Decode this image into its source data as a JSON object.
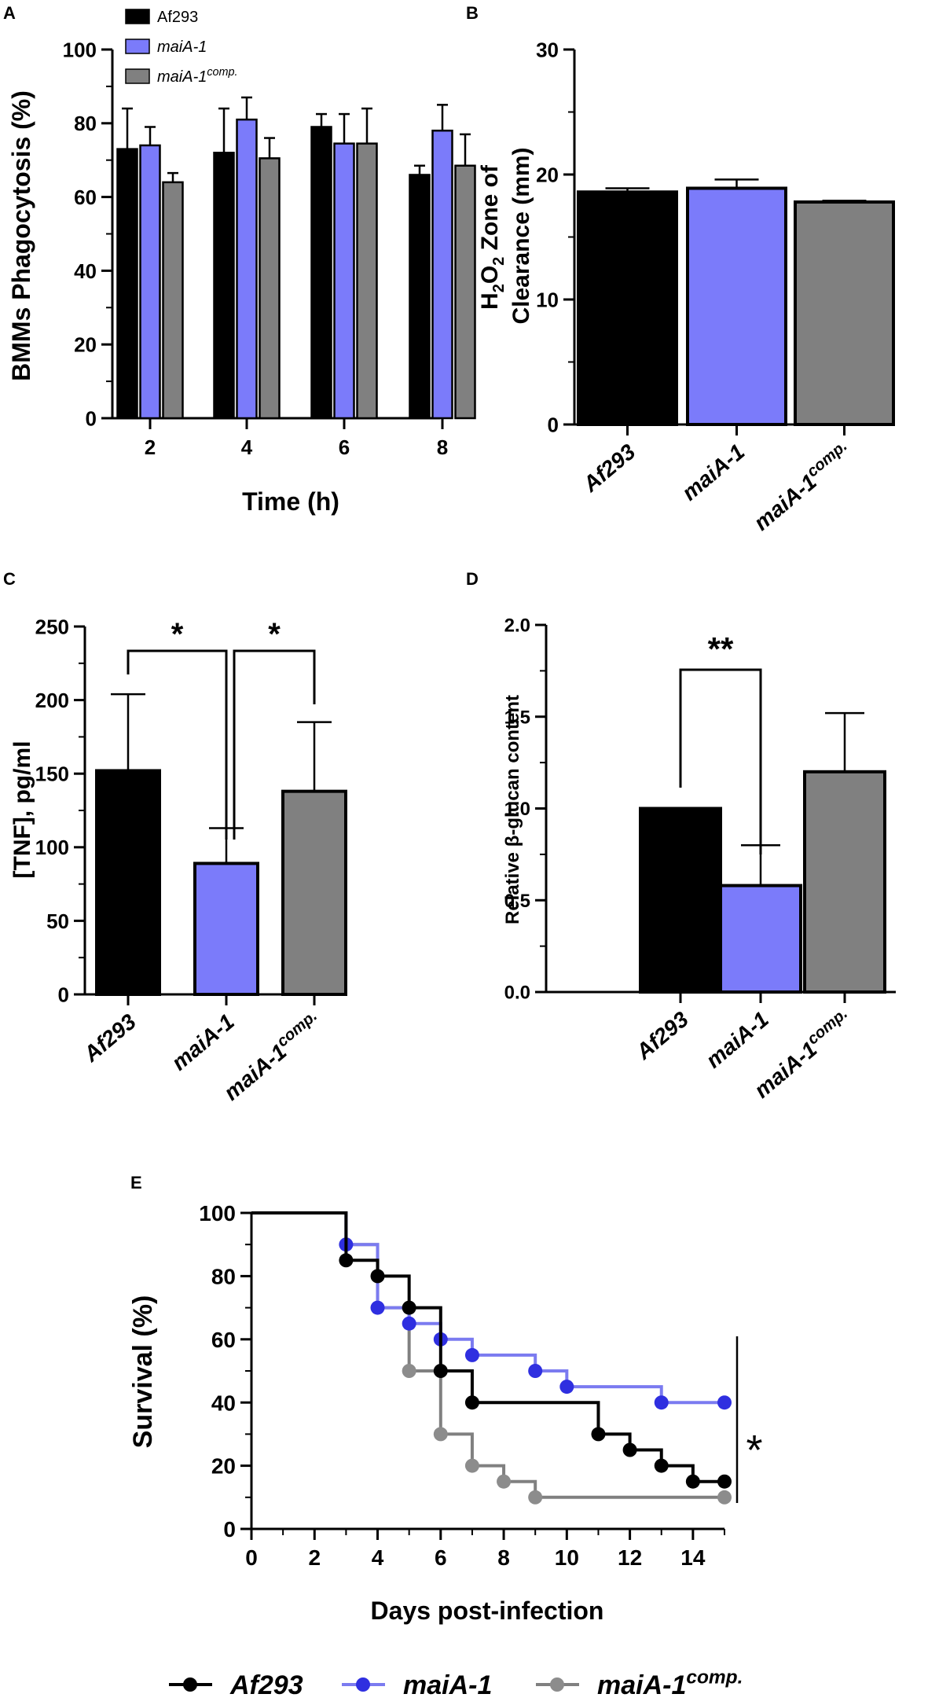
{
  "colors": {
    "af293": "#000000",
    "maia1": "#7b7bfa",
    "comp": "#808080",
    "maia1_line": "#7b7bf0",
    "maia1_dot": "#2f2fe0",
    "comp_dot": "#8c8c8c"
  },
  "chart_data": [
    {
      "panel": "A",
      "type": "bar",
      "xlabel": "Time (h)",
      "ylabel": "BMMs Phagocytosis (%)",
      "categories": [
        "2",
        "4",
        "6",
        "8"
      ],
      "ylim": [
        0,
        100
      ],
      "yticks": [
        "0",
        "20",
        "40",
        "60",
        "80",
        "100"
      ],
      "legend": [
        "Af293",
        "maiA-1",
        "maiA-1"
      ],
      "legend_sup": [
        "",
        "",
        "comp."
      ],
      "series": [
        {
          "name": "Af293",
          "values": [
            73,
            72,
            79,
            66
          ],
          "errors": [
            11,
            12,
            3.5,
            2.5
          ]
        },
        {
          "name": "maiA-1",
          "values": [
            74,
            81,
            74.5,
            78
          ],
          "errors": [
            5,
            6,
            8,
            7
          ]
        },
        {
          "name": "maiA-1comp.",
          "values": [
            64,
            70.5,
            74.5,
            68.5
          ],
          "errors": [
            2.5,
            5.5,
            9.5,
            8.5
          ]
        }
      ]
    },
    {
      "panel": "B",
      "type": "bar",
      "ylabel_line1": "H",
      "ylabel_sub1": "2",
      "ylabel_mid": "O",
      "ylabel_sub2": "2",
      "ylabel_end": " Zone of",
      "ylabel_line2": "Clearance (mm)",
      "ylim": [
        0,
        30
      ],
      "yticks": [
        "0",
        "10",
        "20",
        "30"
      ],
      "categories": [
        "Af293",
        "maiA-1",
        "maiA-1"
      ],
      "category_sup": [
        "",
        "",
        "comp."
      ],
      "values": [
        18.6,
        18.9,
        17.8
      ],
      "errors": [
        0.3,
        0.7,
        0.1
      ]
    },
    {
      "panel": "C",
      "type": "bar",
      "ylabel": "[TNF], pg/ml",
      "ylim": [
        0,
        250
      ],
      "yticks": [
        "0",
        "50",
        "100",
        "150",
        "200",
        "250"
      ],
      "categories": [
        "Af293",
        "maiA-1",
        "maiA-1"
      ],
      "category_sup": [
        "",
        "",
        "comp."
      ],
      "values": [
        152,
        89,
        138
      ],
      "errors": [
        52,
        24,
        47
      ],
      "significance": [
        {
          "pair": [
            0,
            1
          ],
          "label": "*"
        },
        {
          "pair": [
            1,
            2
          ],
          "label": "*"
        }
      ]
    },
    {
      "panel": "D",
      "type": "bar",
      "ylabel": "Relative β-glucan content",
      "ylim": [
        0,
        2.0
      ],
      "yticks": [
        "0.0",
        "0.5",
        "1.0",
        "1.5",
        "2.0"
      ],
      "categories": [
        "Af293",
        "maiA-1",
        "maiA-1"
      ],
      "category_sup": [
        "",
        "",
        "comp."
      ],
      "values": [
        1.0,
        0.58,
        1.2
      ],
      "errors": [
        0,
        0.22,
        0.32
      ],
      "significance": [
        {
          "pair": [
            0,
            1
          ],
          "label": "**"
        }
      ]
    },
    {
      "panel": "E",
      "type": "line",
      "xlabel": "Days post-infection",
      "ylabel": "Survival (%)",
      "xlim": [
        0,
        15
      ],
      "xticks": [
        "0",
        "2",
        "4",
        "6",
        "8",
        "10",
        "12",
        "14"
      ],
      "ylim": [
        0,
        100
      ],
      "yticks": [
        "0",
        "20",
        "40",
        "60",
        "80",
        "100"
      ],
      "significance_label": "*",
      "legend": [
        "Af293",
        "maiA-1",
        "maiA-1"
      ],
      "legend_sup": [
        "",
        "",
        "comp."
      ],
      "series": [
        {
          "name": "Af293",
          "steps": [
            [
              0,
              100
            ],
            [
              3,
              85
            ],
            [
              4,
              80
            ],
            [
              5,
              70
            ],
            [
              6,
              50
            ],
            [
              7,
              40
            ],
            [
              11,
              30
            ],
            [
              12,
              25
            ],
            [
              13,
              20
            ],
            [
              14,
              15
            ],
            [
              15,
              15
            ]
          ],
          "markers": [
            [
              3,
              85
            ],
            [
              4,
              80
            ],
            [
              5,
              70
            ],
            [
              6,
              50
            ],
            [
              7,
              40
            ],
            [
              11,
              30
            ],
            [
              12,
              25
            ],
            [
              13,
              20
            ],
            [
              14,
              15
            ],
            [
              15,
              15
            ]
          ]
        },
        {
          "name": "maiA-1",
          "steps": [
            [
              0,
              100
            ],
            [
              3,
              90
            ],
            [
              4,
              70
            ],
            [
              5,
              65
            ],
            [
              6,
              60
            ],
            [
              7,
              55
            ],
            [
              9,
              50
            ],
            [
              10,
              45
            ],
            [
              13,
              40
            ],
            [
              15,
              40
            ]
          ],
          "markers": [
            [
              3,
              90
            ],
            [
              4,
              70
            ],
            [
              5,
              65
            ],
            [
              6,
              60
            ],
            [
              7,
              55
            ],
            [
              9,
              50
            ],
            [
              10,
              45
            ],
            [
              13,
              40
            ],
            [
              15,
              40
            ]
          ]
        },
        {
          "name": "maiA-1comp.",
          "steps": [
            [
              0,
              100
            ],
            [
              3,
              90
            ],
            [
              4,
              70
            ],
            [
              5,
              50
            ],
            [
              6,
              30
            ],
            [
              7,
              20
            ],
            [
              8,
              15
            ],
            [
              9,
              10
            ],
            [
              15,
              10
            ]
          ],
          "markers": [
            [
              5,
              50
            ],
            [
              6,
              30
            ],
            [
              7,
              20
            ],
            [
              8,
              15
            ],
            [
              9,
              10
            ],
            [
              15,
              10
            ]
          ]
        }
      ]
    }
  ]
}
